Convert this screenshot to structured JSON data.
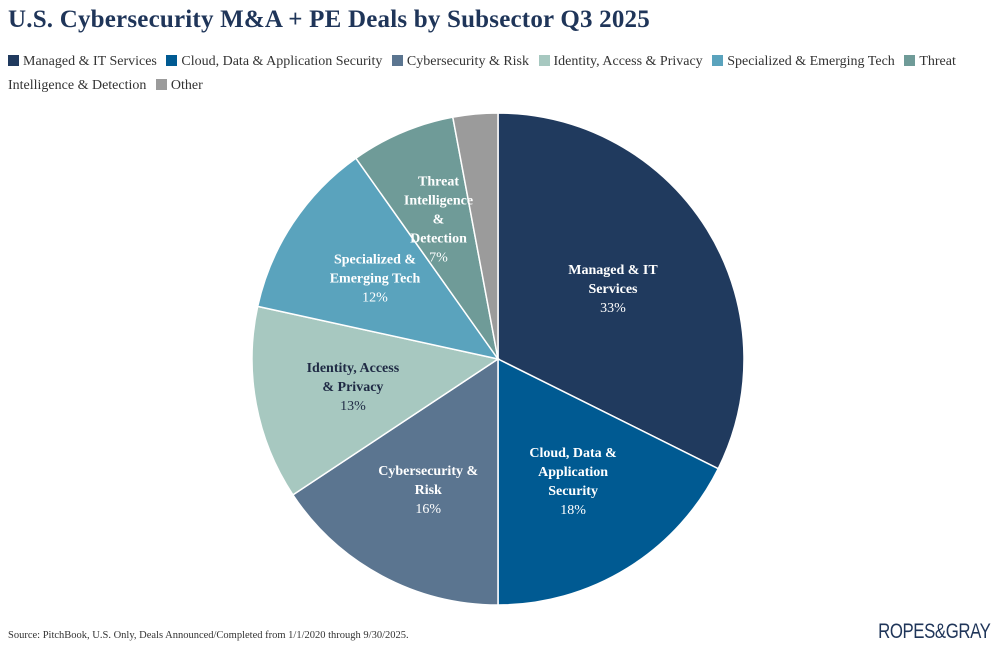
{
  "chart_data": {
    "type": "pie",
    "title": "U.S. Cybersecurity M&A + PE Deals by Subsector Q3 2025",
    "legend_position": "top",
    "slices": [
      {
        "name": "Managed & IT Services",
        "value": 33,
        "label_lines": [
          "Managed & IT",
          "Services"
        ],
        "pct_label": "33%",
        "color": "#203a5e",
        "label_color": "#ffffff"
      },
      {
        "name": "Cloud, Data & Application Security",
        "value": 18,
        "label_lines": [
          "Cloud, Data &",
          "Application",
          "Security"
        ],
        "pct_label": "18%",
        "color": "#005a92",
        "label_color": "#ffffff"
      },
      {
        "name": "Cybersecurity & Risk",
        "value": 16,
        "label_lines": [
          "Cybersecurity &",
          "Risk"
        ],
        "pct_label": "16%",
        "color": "#5b7590",
        "label_color": "#ffffff"
      },
      {
        "name": "Identity, Access & Privacy",
        "value": 13,
        "label_lines": [
          "Identity, Access",
          "& Privacy"
        ],
        "pct_label": "13%",
        "color": "#a7c8c0",
        "label_color": "#1f2a44"
      },
      {
        "name": "Specialized & Emerging Tech",
        "value": 12,
        "label_lines": [
          "Specialized &",
          "Emerging Tech"
        ],
        "pct_label": "12%",
        "color": "#5aa3bd",
        "label_color": "#ffffff"
      },
      {
        "name": "Threat Intelligence & Detection",
        "value": 7,
        "label_lines": [
          "Threat",
          "Intelligence",
          "&",
          "Detection"
        ],
        "pct_label": "7%",
        "color": "#6f9b98",
        "label_color": "#ffffff"
      },
      {
        "name": "Other",
        "value": 3,
        "label_lines": [],
        "pct_label": "",
        "color": "#9b9b9b",
        "label_color": "#ffffff"
      }
    ]
  },
  "source": "Source: PitchBook, U.S. Only, Deals Announced/Completed from 1/1/2020 through 9/30/2025.",
  "logo": "ROPES&GRAY"
}
